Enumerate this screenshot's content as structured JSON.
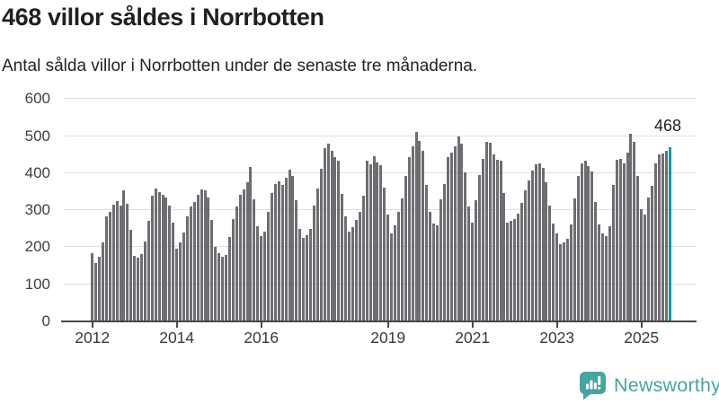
{
  "header": {
    "title": "468 villor såldes i Norrbotten",
    "subtitle": "Antal sålda villor i Norrbotten under de senaste tre månaderna."
  },
  "branding": {
    "name": "Newsworthy",
    "icon": "bar-chart-speech-bubble-icon",
    "color": "#45a5a1"
  },
  "colors": {
    "bar": "#6d6d72",
    "highlight": "#009b9f",
    "gridline": "#dedede",
    "axis": "#474747",
    "text": "#1d221d"
  },
  "chart_data": {
    "type": "bar",
    "title": "468 villor såldes i Norrbotten",
    "xlabel": "",
    "ylabel": "",
    "ylim": [
      0,
      600
    ],
    "grid": true,
    "legend_position": "none",
    "yticks": [
      600,
      500,
      400,
      300,
      200,
      100,
      0
    ],
    "xticks": [
      {
        "label": "2012",
        "index": 0
      },
      {
        "label": "2014",
        "index": 24
      },
      {
        "label": "2016",
        "index": 48
      },
      {
        "label": "2019",
        "index": 84
      },
      {
        "label": "2021",
        "index": 108
      },
      {
        "label": "2023",
        "index": 132
      },
      {
        "label": "2025",
        "index": 156
      }
    ],
    "x_period": "monthly, Jan 2012 – Sep 2025, rolling 3-month totals",
    "highlight_last_bar": true,
    "last_value_label": "468",
    "values": [
      184,
      156,
      172,
      212,
      281,
      293,
      313,
      323,
      311,
      353,
      317,
      246,
      176,
      171,
      180,
      214,
      269,
      337,
      357,
      347,
      341,
      333,
      311,
      265,
      196,
      212,
      239,
      283,
      309,
      322,
      341,
      355,
      352,
      333,
      273,
      199,
      184,
      172,
      179,
      226,
      276,
      309,
      341,
      354,
      373,
      416,
      328,
      255,
      229,
      241,
      294,
      346,
      370,
      376,
      366,
      386,
      407,
      392,
      326,
      247,
      225,
      232,
      248,
      310,
      357,
      410,
      467,
      478,
      459,
      443,
      431,
      342,
      282,
      241,
      253,
      273,
      295,
      338,
      432,
      423,
      445,
      427,
      421,
      360,
      287,
      237,
      257,
      293,
      330,
      390,
      442,
      470,
      510,
      486,
      459,
      366,
      295,
      262,
      257,
      329,
      369,
      442,
      454,
      470,
      498,
      478,
      401,
      309,
      264,
      325,
      393,
      438,
      482,
      480,
      448,
      434,
      432,
      345,
      265,
      269,
      275,
      290,
      318,
      352,
      378,
      405,
      422,
      426,
      412,
      373,
      310,
      262,
      237,
      208,
      211,
      222,
      260,
      330,
      390,
      426,
      432,
      418,
      402,
      321,
      261,
      237,
      228,
      255,
      366,
      434,
      438,
      426,
      454,
      506,
      482,
      390,
      301,
      288,
      333,
      365,
      426,
      450,
      452,
      458,
      468
    ]
  }
}
